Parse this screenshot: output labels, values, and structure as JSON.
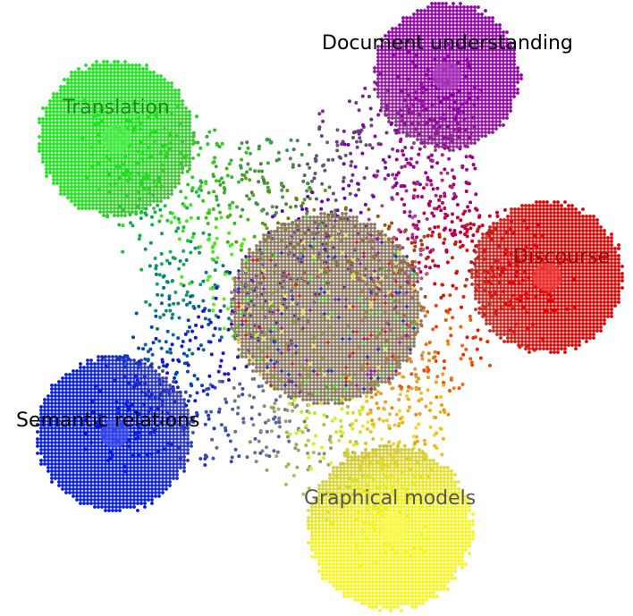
{
  "topics": [
    {
      "label": "Translation",
      "color": "#19e619"
    },
    {
      "label": "Document understanding",
      "color": "#8f00a8"
    },
    {
      "label": "Discourse",
      "color": "#e60000"
    },
    {
      "label": "Semantic relations",
      "color": "#0018e0"
    },
    {
      "label": "Graphical models",
      "color": "#f5f520"
    }
  ],
  "center_cluster": {
    "color": "#8a7860"
  }
}
